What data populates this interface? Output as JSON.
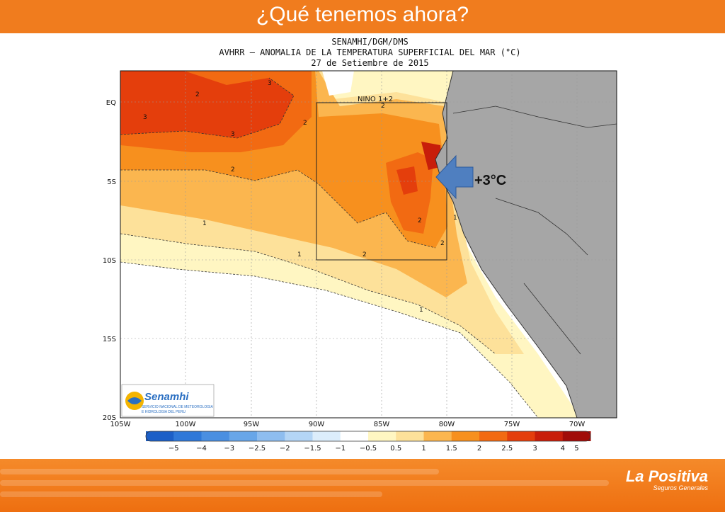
{
  "slide": {
    "title": "¿Qué tenemos ahora?"
  },
  "map": {
    "title_lines": [
      "SENAMHI/DGM/DMS",
      "AVHRR – ANOMALIA DE LA TEMPERATURA SUPERFICIAL DEL MAR (°C)",
      "27 de Setiembre de 2015"
    ],
    "lat_labels": [
      "EQ",
      "5S",
      "10S",
      "15S",
      "20S"
    ],
    "lon_labels": [
      "105W",
      "100W",
      "95W",
      "90W",
      "85W",
      "80W",
      "75W",
      "70W"
    ],
    "region_label": "NINO 1+2",
    "contour_labels": [
      "3",
      "2",
      "3",
      "3",
      "2",
      "2",
      "2",
      "2",
      "1",
      "1",
      "1",
      "2",
      "2",
      "1"
    ],
    "annotation": "+3°C",
    "arrow_color": "#4f7fc0"
  },
  "colorbar": {
    "ticks": [
      "−5",
      "−4",
      "−3",
      "−2.5",
      "−2",
      "−1.5",
      "−1",
      "−0.5",
      "0.5",
      "1",
      "1.5",
      "2",
      "2.5",
      "3",
      "4",
      "5"
    ],
    "colors": [
      "#1c5fc7",
      "#2f78d8",
      "#4a8fe1",
      "#68a6e8",
      "#8ebdef",
      "#b4d5f5",
      "#dcedfb",
      "#ffffff",
      "#fff6c2",
      "#fde19a",
      "#fbb64f",
      "#f7901e",
      "#f26a12",
      "#e43e0c",
      "#c81e0a",
      "#a10c08"
    ]
  },
  "logo": {
    "name": "Senamhi",
    "line1": "SERVICIO NACIONAL DE METEOROLOGIA",
    "line2": "E HIDROLOGIA DEL PERU"
  },
  "footer": {
    "brand": "La Positiva",
    "tagline": "Seguros Generales"
  },
  "palette": {
    "header": "#f07c1e",
    "land": "#a6a6a6"
  }
}
